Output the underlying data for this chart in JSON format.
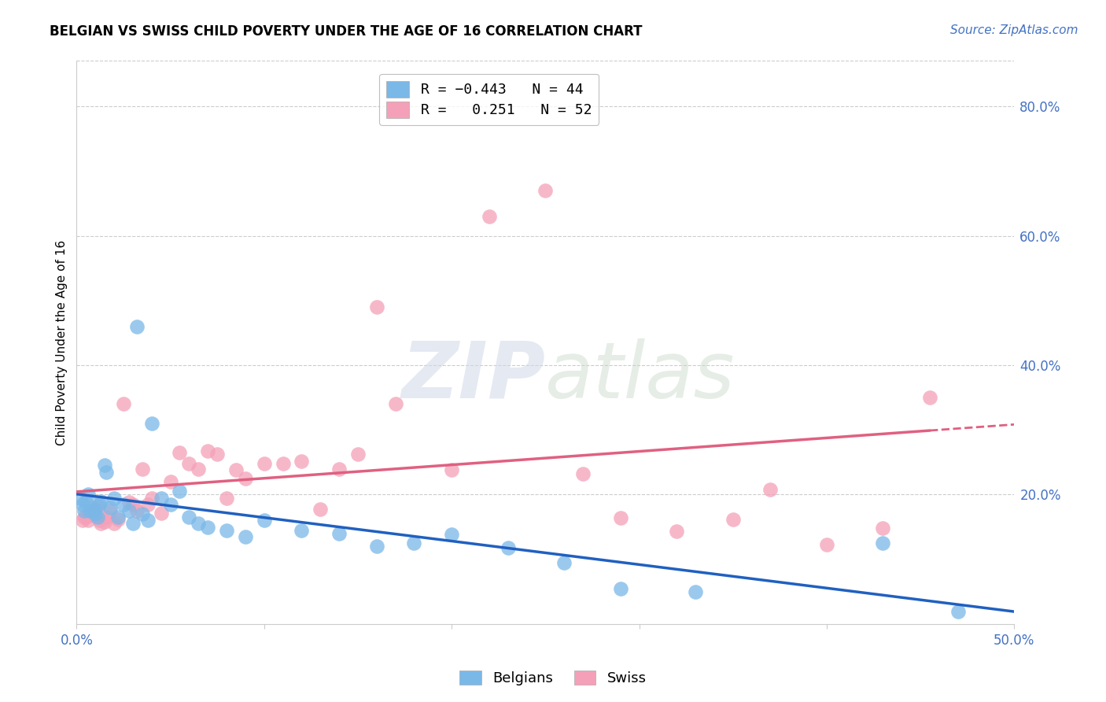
{
  "title": "BELGIAN VS SWISS CHILD POVERTY UNDER THE AGE OF 16 CORRELATION CHART",
  "source": "Source: ZipAtlas.com",
  "ylabel": "Child Poverty Under the Age of 16",
  "xlim": [
    0.0,
    0.5
  ],
  "ylim": [
    0.0,
    0.87
  ],
  "belgian_color": "#7ab8e8",
  "swiss_color": "#f4a0b8",
  "belgian_line_color": "#2060c0",
  "swiss_line_color": "#e06080",
  "background_color": "#ffffff",
  "belgians_x": [
    0.002,
    0.003,
    0.004,
    0.005,
    0.006,
    0.007,
    0.008,
    0.009,
    0.01,
    0.011,
    0.012,
    0.013,
    0.015,
    0.016,
    0.018,
    0.02,
    0.022,
    0.025,
    0.028,
    0.03,
    0.032,
    0.035,
    0.038,
    0.04,
    0.045,
    0.05,
    0.055,
    0.06,
    0.065,
    0.07,
    0.08,
    0.09,
    0.1,
    0.12,
    0.14,
    0.16,
    0.18,
    0.2,
    0.23,
    0.26,
    0.29,
    0.33,
    0.43,
    0.47
  ],
  "belgians_y": [
    0.195,
    0.185,
    0.175,
    0.19,
    0.2,
    0.175,
    0.18,
    0.175,
    0.17,
    0.165,
    0.185,
    0.19,
    0.245,
    0.235,
    0.18,
    0.195,
    0.165,
    0.185,
    0.175,
    0.155,
    0.46,
    0.17,
    0.16,
    0.31,
    0.195,
    0.185,
    0.205,
    0.165,
    0.155,
    0.15,
    0.145,
    0.135,
    0.16,
    0.145,
    0.14,
    0.12,
    0.125,
    0.138,
    0.118,
    0.095,
    0.055,
    0.05,
    0.125,
    0.02
  ],
  "swiss_x": [
    0.003,
    0.004,
    0.005,
    0.006,
    0.007,
    0.008,
    0.009,
    0.01,
    0.011,
    0.012,
    0.013,
    0.015,
    0.016,
    0.018,
    0.02,
    0.022,
    0.025,
    0.028,
    0.03,
    0.032,
    0.035,
    0.038,
    0.04,
    0.045,
    0.05,
    0.055,
    0.06,
    0.065,
    0.07,
    0.075,
    0.08,
    0.085,
    0.09,
    0.1,
    0.11,
    0.12,
    0.13,
    0.14,
    0.15,
    0.16,
    0.17,
    0.2,
    0.22,
    0.25,
    0.27,
    0.29,
    0.32,
    0.35,
    0.37,
    0.4,
    0.43,
    0.455
  ],
  "swiss_y": [
    0.16,
    0.165,
    0.165,
    0.16,
    0.168,
    0.17,
    0.175,
    0.178,
    0.182,
    0.16,
    0.155,
    0.158,
    0.165,
    0.175,
    0.155,
    0.162,
    0.34,
    0.188,
    0.185,
    0.175,
    0.24,
    0.185,
    0.195,
    0.172,
    0.22,
    0.265,
    0.248,
    0.24,
    0.268,
    0.262,
    0.195,
    0.238,
    0.225,
    0.248,
    0.248,
    0.252,
    0.178,
    0.24,
    0.262,
    0.49,
    0.34,
    0.238,
    0.63,
    0.67,
    0.232,
    0.164,
    0.143,
    0.162,
    0.208,
    0.123,
    0.148,
    0.35
  ]
}
